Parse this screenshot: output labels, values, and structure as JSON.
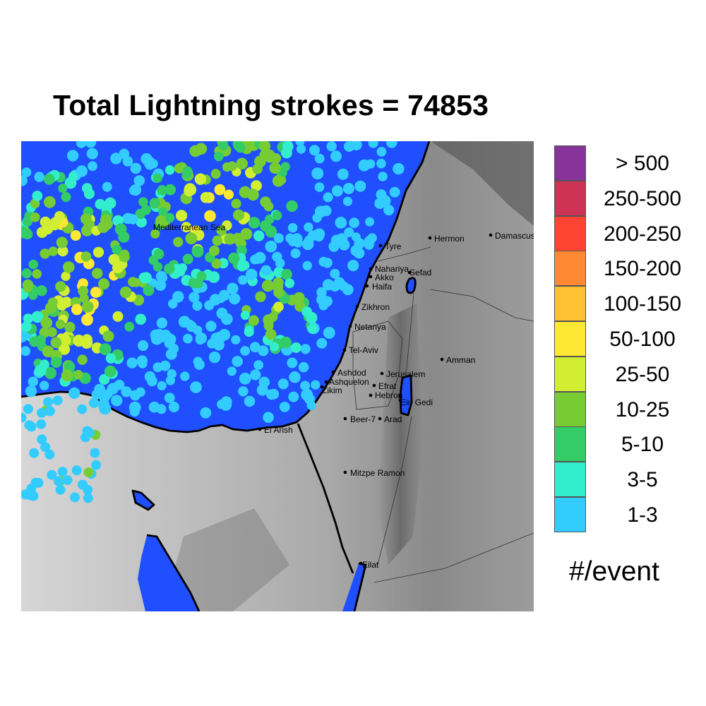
{
  "title": "Total Lightning strokes = 74853",
  "legend": {
    "unit": "#/event",
    "bins": [
      {
        "label": "> 500",
        "color": "#873399"
      },
      {
        "label": "250-500",
        "color": "#cc3355"
      },
      {
        "label": "200-250",
        "color": "#ff4433"
      },
      {
        "label": "150-200",
        "color": "#ff8833"
      },
      {
        "label": "100-150",
        "color": "#ffc033"
      },
      {
        "label": "50-100",
        "color": "#ffe833"
      },
      {
        "label": "25-50",
        "color": "#d2ee33"
      },
      {
        "label": "10-25",
        "color": "#77cc33"
      },
      {
        "label": "5-10",
        "color": "#33cc66"
      },
      {
        "label": "3-5",
        "color": "#33eecc"
      },
      {
        "label": "1-3",
        "color": "#33ccff"
      }
    ]
  },
  "colors": {
    "sea": "#1f4fff",
    "land_light": "#d2d2d2",
    "land_dark": "#808080",
    "border": "#000000"
  },
  "map": {
    "sea_label": "Mediterranean Sea",
    "cities": [
      "Tyre",
      "Hermon",
      "Damascus",
      "Nahariya",
      "Akko",
      "Sefad",
      "Haifa",
      "Zikhron",
      "Netanya",
      "Tel-Aviv",
      "Ashdod",
      "Jerusalem",
      "Ashquelon",
      "Efrat",
      "Zikim",
      "Hebron",
      "Ein Gedi",
      "Amman",
      "El Arish",
      "Beer-7",
      "Arad",
      "Mitzpe Ramon",
      "Eilat"
    ]
  }
}
